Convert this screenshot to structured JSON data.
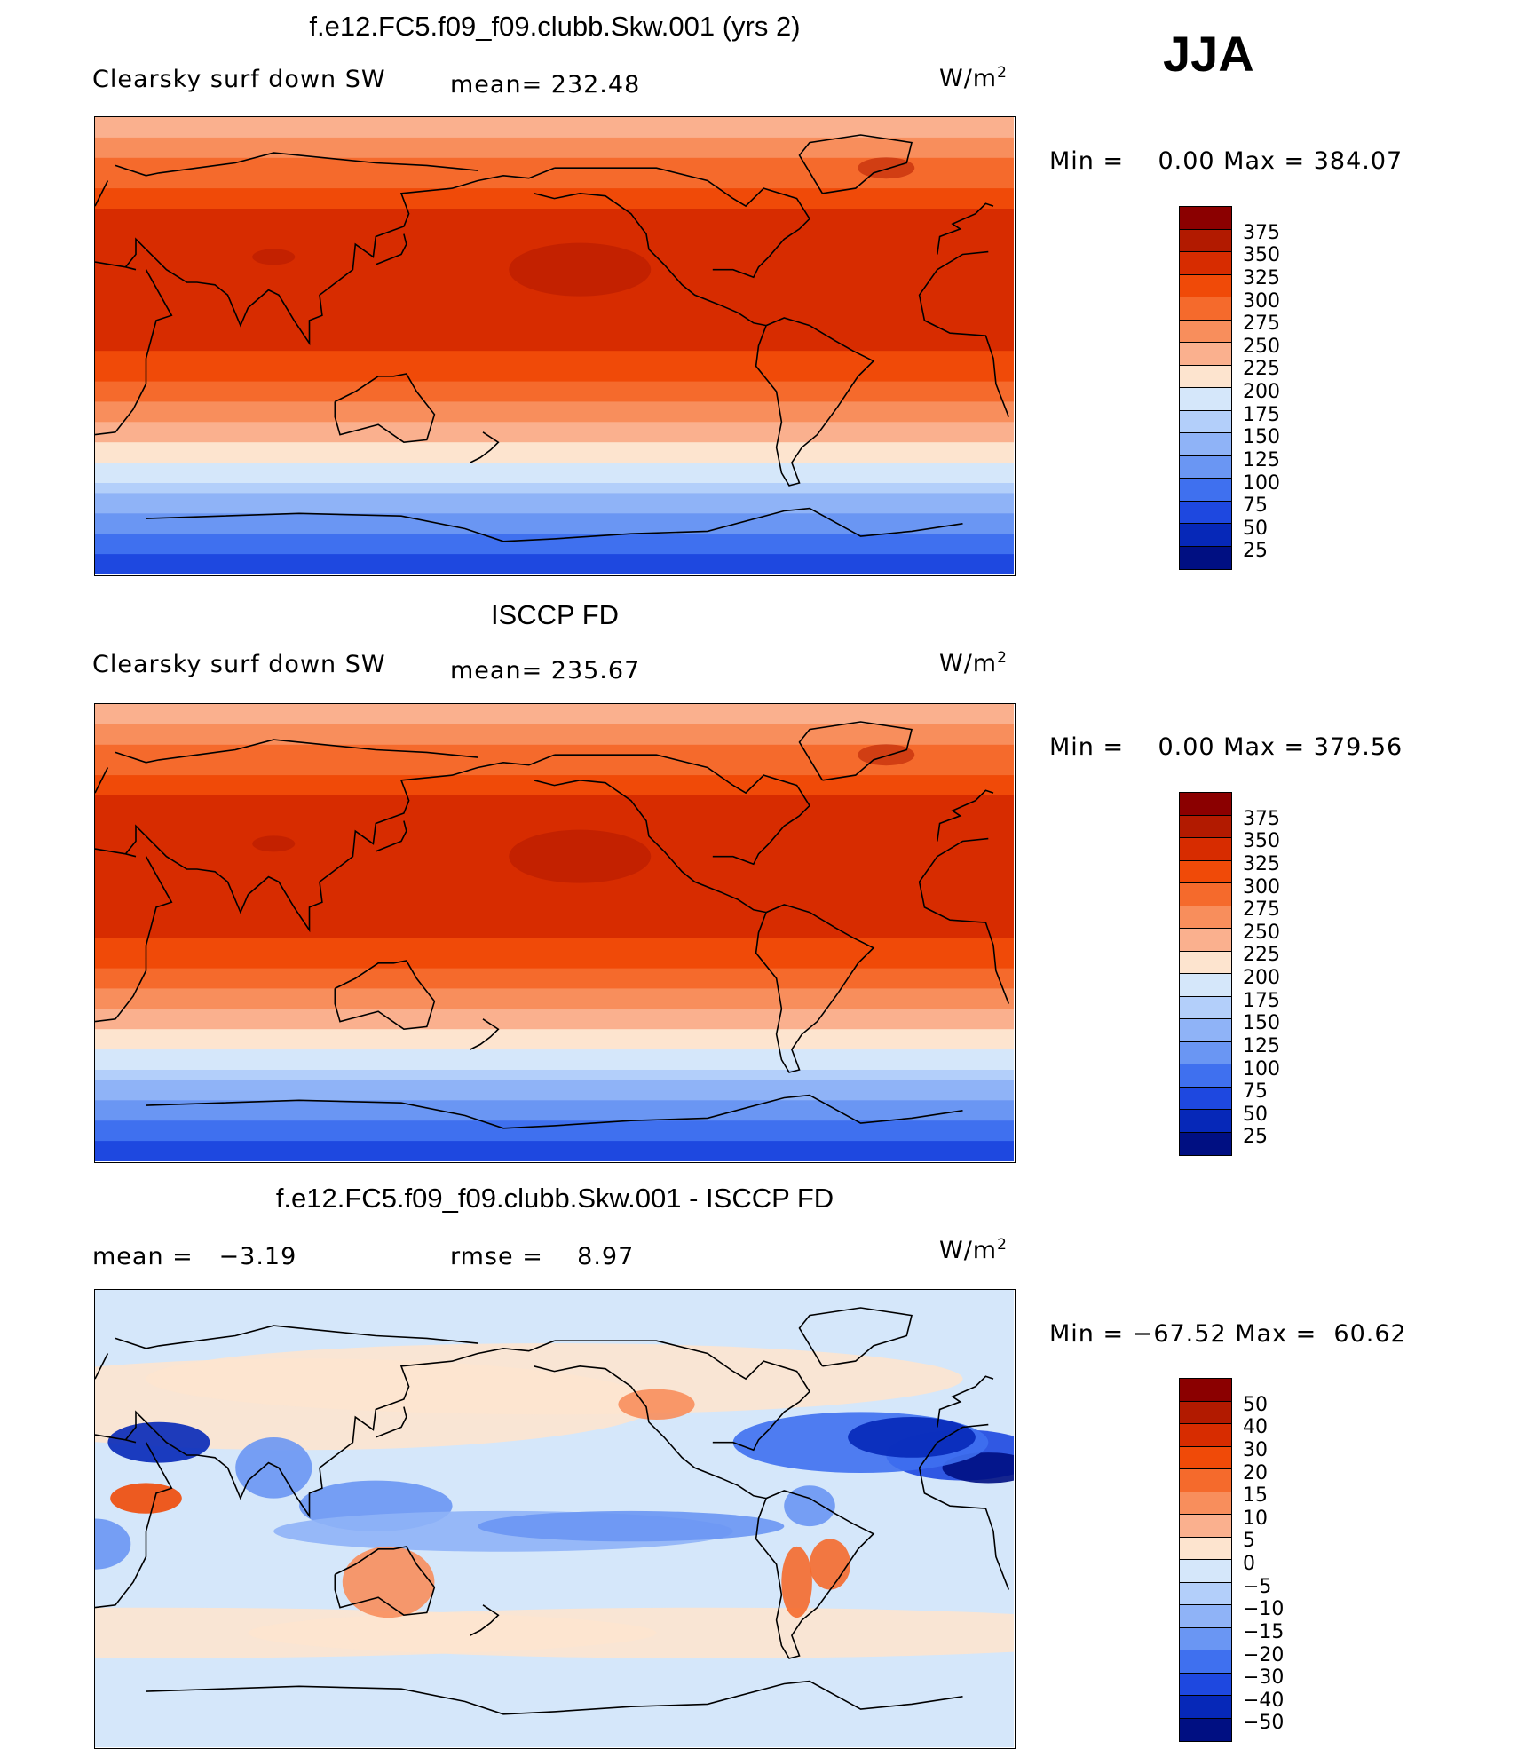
{
  "season": "JJA",
  "panels": [
    {
      "title": "f.e12.FC5.f09_f09.clubb.Skw.001 (yrs 2)",
      "variable": "Clearsky surf down SW",
      "stat_text": "mean=  232.48",
      "units_base": "W/m",
      "units_sup": "2",
      "minmax": "Min =    0.00 Max = 384.07",
      "color_scale": "absolute"
    },
    {
      "title": "ISCCP FD",
      "variable": "Clearsky surf down SW",
      "stat_text": "mean=  235.67",
      "units_base": "W/m",
      "units_sup": "2",
      "minmax": "Min =    0.00 Max = 379.56",
      "color_scale": "absolute"
    },
    {
      "title": "f.e12.FC5.f09_f09.clubb.Skw.001 - ISCCP FD",
      "mean_text": "mean =   −3.19",
      "rmse_text": "rmse =    8.97",
      "units_base": "W/m",
      "units_sup": "2",
      "minmax": "Min = −67.52 Max =  60.62",
      "color_scale": "difference"
    }
  ],
  "colorbars": {
    "absolute": {
      "labels": [
        "375",
        "350",
        "325",
        "300",
        "275",
        "250",
        "225",
        "200",
        "175",
        "150",
        "125",
        "100",
        "75",
        "50",
        "25"
      ],
      "colors": [
        "#8b0000",
        "#b21a00",
        "#d72c00",
        "#f04a08",
        "#f56a2c",
        "#f88e5c",
        "#fab08e",
        "#fde4cf",
        "#d5e7fa",
        "#b3cffa",
        "#8fb3f7",
        "#6a96f3",
        "#3f70ef",
        "#1e48e0",
        "#0628b8",
        "#000f82"
      ]
    },
    "difference": {
      "labels": [
        "50",
        "40",
        "30",
        "20",
        "15",
        "10",
        "5",
        "0",
        "−5",
        "−10",
        "−15",
        "−20",
        "−30",
        "−40",
        "−50"
      ],
      "colors": [
        "#8b0000",
        "#b21a00",
        "#d72c00",
        "#f04a08",
        "#f56a2c",
        "#f88e5c",
        "#fab08e",
        "#fde4cf",
        "#d5e7fa",
        "#b3cffa",
        "#8fb3f7",
        "#6a96f3",
        "#3f70ef",
        "#1e48e0",
        "#0628b8",
        "#000f82"
      ]
    }
  }
}
